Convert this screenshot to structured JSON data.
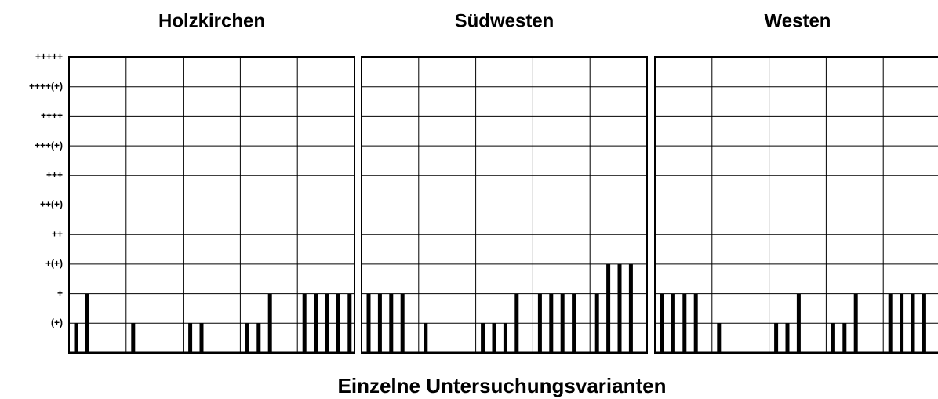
{
  "chart_data": {
    "type": "bar",
    "xlabel": "Einzelne Untersuchungsvarianten",
    "color": "#000000",
    "grid": true,
    "ylim": [
      0,
      10
    ],
    "yticks": [
      {
        "value": 1,
        "label": "(+)"
      },
      {
        "value": 2,
        "label": "+"
      },
      {
        "value": 3,
        "label": "+(+)"
      },
      {
        "value": 4,
        "label": "++"
      },
      {
        "value": 5,
        "label": "++(+)"
      },
      {
        "value": 6,
        "label": "+++"
      },
      {
        "value": 7,
        "label": "+++(+)"
      },
      {
        "value": 8,
        "label": "++++"
      },
      {
        "value": 9,
        "label": "++++(+)"
      },
      {
        "value": 10,
        "label": "+++++"
      }
    ],
    "panels": [
      {
        "title": "Holzkirchen",
        "values": [
          1,
          2,
          0,
          0,
          0,
          1,
          0,
          0,
          0,
          0,
          1,
          1,
          0,
          0,
          0,
          1,
          1,
          2,
          0,
          0,
          2,
          2,
          2,
          2,
          2
        ]
      },
      {
        "title": "Südwesten",
        "values": [
          2,
          2,
          2,
          2,
          0,
          1,
          0,
          0,
          0,
          0,
          1,
          1,
          1,
          2,
          0,
          2,
          2,
          2,
          2,
          0,
          2,
          3,
          3,
          3,
          0
        ]
      },
      {
        "title": "Westen",
        "values": [
          2,
          2,
          2,
          2,
          0,
          1,
          0,
          0,
          0,
          0,
          1,
          1,
          2,
          0,
          0,
          1,
          1,
          2,
          0,
          0,
          2,
          2,
          2,
          2,
          0
        ]
      }
    ]
  }
}
